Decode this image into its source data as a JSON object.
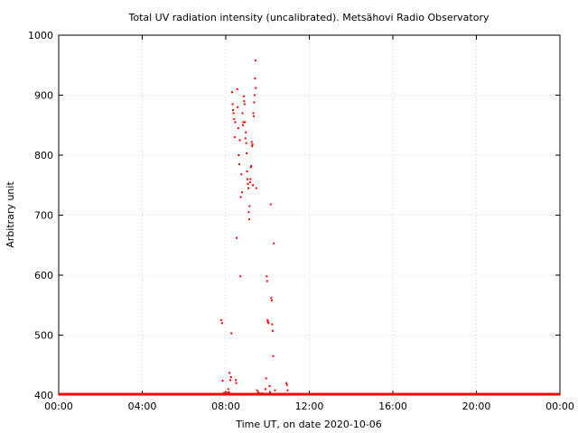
{
  "chart_data": {
    "type": "scatter",
    "title": "Total UV radiation intensity (uncalibrated). Metsähovi Radio Observatory",
    "xlabel": "Time UT, on date 2020-10-06",
    "ylabel": "Arbitrary unit",
    "xlim": [
      0,
      24
    ],
    "ylim": [
      400,
      1000
    ],
    "x_ticks": [
      0,
      4,
      8,
      12,
      16,
      20,
      24
    ],
    "x_tick_labels": [
      "00:00",
      "04:00",
      "08:00",
      "12:00",
      "16:00",
      "20:00",
      "00:00"
    ],
    "y_ticks": [
      400,
      500,
      600,
      700,
      800,
      900,
      1000
    ],
    "y_tick_labels": [
      "400",
      "500",
      "600",
      "700",
      "800",
      "900",
      "1000"
    ],
    "grid": true,
    "marker_color": "#ff0000",
    "baseline": {
      "value": 400,
      "from": 0,
      "to": 24
    },
    "points": [
      [
        7.78,
        525
      ],
      [
        7.82,
        520
      ],
      [
        7.85,
        424
      ],
      [
        7.92,
        404
      ],
      [
        8.08,
        404
      ],
      [
        8.12,
        410
      ],
      [
        8.15,
        405
      ],
      [
        8.18,
        437
      ],
      [
        8.22,
        425
      ],
      [
        8.25,
        430
      ],
      [
        8.27,
        503
      ],
      [
        8.3,
        905
      ],
      [
        8.33,
        885
      ],
      [
        8.35,
        875
      ],
      [
        8.37,
        870
      ],
      [
        8.4,
        860
      ],
      [
        8.42,
        830
      ],
      [
        8.45,
        855
      ],
      [
        8.48,
        425
      ],
      [
        8.5,
        420
      ],
      [
        8.52,
        662
      ],
      [
        8.55,
        910
      ],
      [
        8.57,
        880
      ],
      [
        8.6,
        845
      ],
      [
        8.62,
        800
      ],
      [
        8.65,
        785
      ],
      [
        8.67,
        825
      ],
      [
        8.7,
        598
      ],
      [
        8.72,
        730
      ],
      [
        8.75,
        768
      ],
      [
        8.78,
        738
      ],
      [
        8.8,
        870
      ],
      [
        8.82,
        850
      ],
      [
        8.84,
        855
      ],
      [
        8.86,
        898
      ],
      [
        8.88,
        890
      ],
      [
        8.9,
        885
      ],
      [
        8.92,
        855
      ],
      [
        8.94,
        828
      ],
      [
        8.96,
        838
      ],
      [
        8.98,
        820
      ],
      [
        9.0,
        803
      ],
      [
        9.02,
        773
      ],
      [
        9.04,
        760
      ],
      [
        9.06,
        752
      ],
      [
        9.08,
        745
      ],
      [
        9.1,
        705
      ],
      [
        9.12,
        693
      ],
      [
        9.14,
        715
      ],
      [
        9.16,
        755
      ],
      [
        9.18,
        760
      ],
      [
        9.2,
        780
      ],
      [
        9.22,
        782
      ],
      [
        9.24,
        822
      ],
      [
        9.26,
        815
      ],
      [
        9.28,
        818
      ],
      [
        9.3,
        750
      ],
      [
        9.32,
        870
      ],
      [
        9.34,
        865
      ],
      [
        9.36,
        888
      ],
      [
        9.38,
        900
      ],
      [
        9.4,
        928
      ],
      [
        9.42,
        958
      ],
      [
        9.44,
        912
      ],
      [
        9.46,
        745
      ],
      [
        9.5,
        408
      ],
      [
        9.55,
        405
      ],
      [
        9.6,
        403
      ],
      [
        9.65,
        402
      ],
      [
        9.7,
        402
      ],
      [
        9.75,
        403
      ],
      [
        9.8,
        401
      ],
      [
        9.85,
        402
      ],
      [
        9.9,
        410
      ],
      [
        9.93,
        428
      ],
      [
        9.96,
        598
      ],
      [
        9.98,
        590
      ],
      [
        10.0,
        525
      ],
      [
        10.02,
        522
      ],
      [
        10.05,
        520
      ],
      [
        10.1,
        415
      ],
      [
        10.12,
        405
      ],
      [
        10.15,
        718
      ],
      [
        10.18,
        562
      ],
      [
        10.2,
        558
      ],
      [
        10.22,
        518
      ],
      [
        10.25,
        507
      ],
      [
        10.27,
        465
      ],
      [
        10.3,
        653
      ],
      [
        10.35,
        408
      ],
      [
        10.5,
        402
      ],
      [
        10.9,
        420
      ],
      [
        10.93,
        417
      ],
      [
        10.96,
        408
      ],
      [
        11.0,
        402
      ]
    ]
  }
}
